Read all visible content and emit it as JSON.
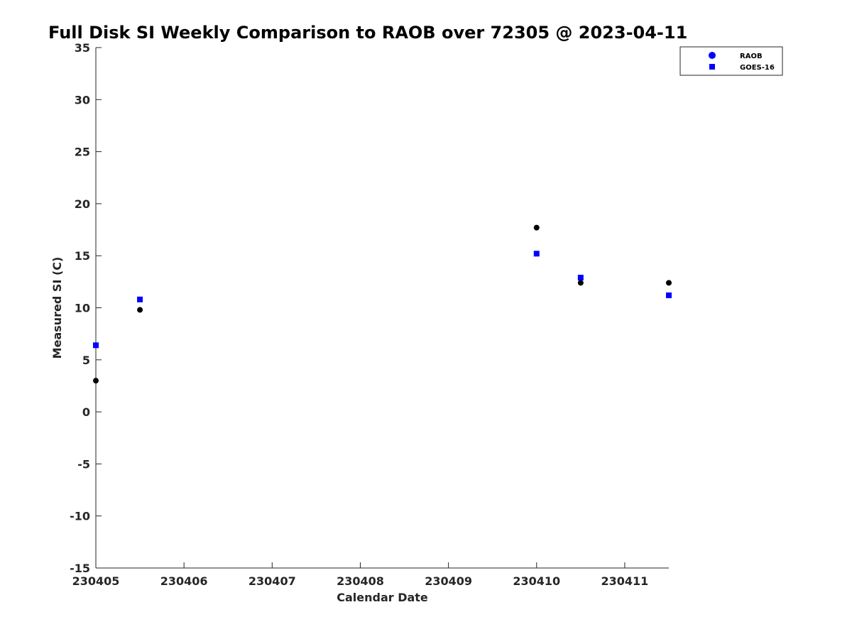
{
  "chart_data": {
    "type": "scatter",
    "title": "Full Disk SI Weekly Comparison to RAOB over 72305 @ 2023-04-11",
    "xlabel": "Calendar Date",
    "ylabel": "Measured SI (C)",
    "xlim": [
      "230405",
      "230411.5"
    ],
    "ylim": [
      -15,
      35
    ],
    "x_ticks": [
      "230405",
      "230406",
      "230407",
      "230408",
      "230409",
      "230410",
      "230411"
    ],
    "y_ticks": [
      -15,
      -10,
      -5,
      0,
      5,
      10,
      15,
      20,
      25,
      30,
      35
    ],
    "grid": false,
    "legend_position": "top-right",
    "series": [
      {
        "name": "RAOB",
        "marker": "circle",
        "color": "#000000",
        "legend_color": "#0000ff",
        "points": [
          {
            "x": "2023-04-05 00Z",
            "y": 3.0
          },
          {
            "x": "2023-04-05 12Z",
            "y": 9.8
          },
          {
            "x": "2023-04-10 00Z",
            "y": 17.7
          },
          {
            "x": "2023-04-10 12Z",
            "y": 12.4
          },
          {
            "x": "2023-04-11 12Z",
            "y": 12.4
          }
        ]
      },
      {
        "name": "GOES-16",
        "marker": "square",
        "color": "#0000ff",
        "legend_color": "#0000ff",
        "points": [
          {
            "x": "2023-04-05 00Z",
            "y": 6.4
          },
          {
            "x": "2023-04-05 12Z",
            "y": 10.8
          },
          {
            "x": "2023-04-10 00Z",
            "y": 15.2
          },
          {
            "x": "2023-04-10 12Z",
            "y": 12.9
          },
          {
            "x": "2023-04-11 12Z",
            "y": 11.2
          }
        ]
      }
    ]
  }
}
